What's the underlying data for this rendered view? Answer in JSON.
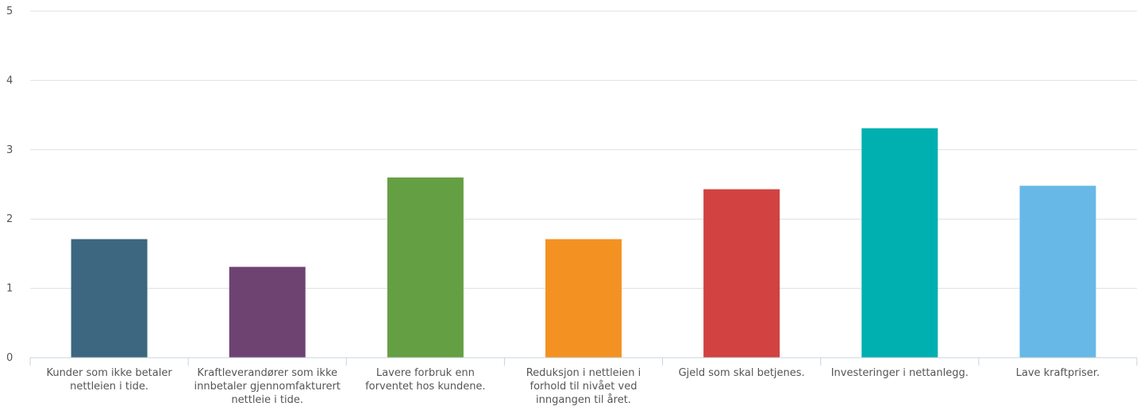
{
  "chart_data": {
    "type": "bar",
    "categories": [
      [
        "Kunder som ikke betaler",
        "nettleien i tide."
      ],
      [
        "Kraftleverandører som ikke",
        "innbetaler gjennomfakturert",
        "nettleie i tide."
      ],
      [
        "Lavere forbruk enn",
        "forventet hos kundene."
      ],
      [
        "Reduksjon i nettleien i",
        "forhold til nivået ved",
        "inngangen til året."
      ],
      [
        "Gjeld som skal betjenes."
      ],
      [
        "Investeringer i nettanlegg."
      ],
      [
        "Lave kraftpriser."
      ]
    ],
    "values": [
      1.71,
      1.31,
      2.6,
      1.71,
      2.43,
      3.31,
      2.48
    ],
    "colors": [
      "#3d6680",
      "#6e4372",
      "#659f43",
      "#f39222",
      "#d14241",
      "#00b0b1",
      "#67b8e7"
    ],
    "ylim": [
      0,
      5
    ],
    "yticks": [
      "0",
      "1",
      "2",
      "3",
      "4",
      "5"
    ],
    "grid": true
  }
}
